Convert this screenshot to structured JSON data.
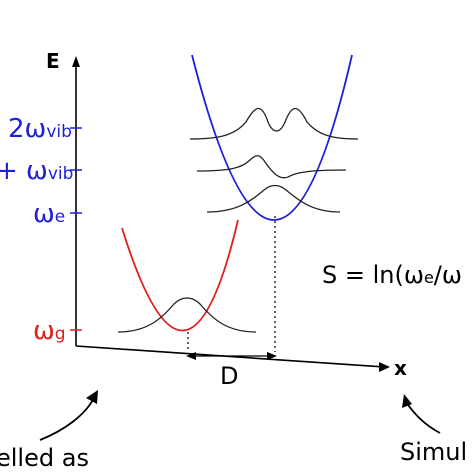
{
  "axes": {
    "y_label": "E",
    "x_label": "x"
  },
  "energy_labels": {
    "level2": {
      "prefix": "2ω",
      "sub": "vib"
    },
    "level1": {
      "prefix": "+ ω",
      "sub": "vib"
    },
    "omega_e": {
      "prefix": "ω",
      "sub": "e"
    },
    "omega_g": {
      "prefix": "ω",
      "sub": "g"
    }
  },
  "displacement_label": "D",
  "equation": {
    "part1": "S = ln(ω",
    "sub1": "e",
    "part2": "/ω"
  },
  "captions": {
    "left": "elled as",
    "right": "Simul"
  },
  "colors": {
    "excited": "#1f1fd6",
    "ground": "#e01e1e",
    "ink": "#000000"
  }
}
